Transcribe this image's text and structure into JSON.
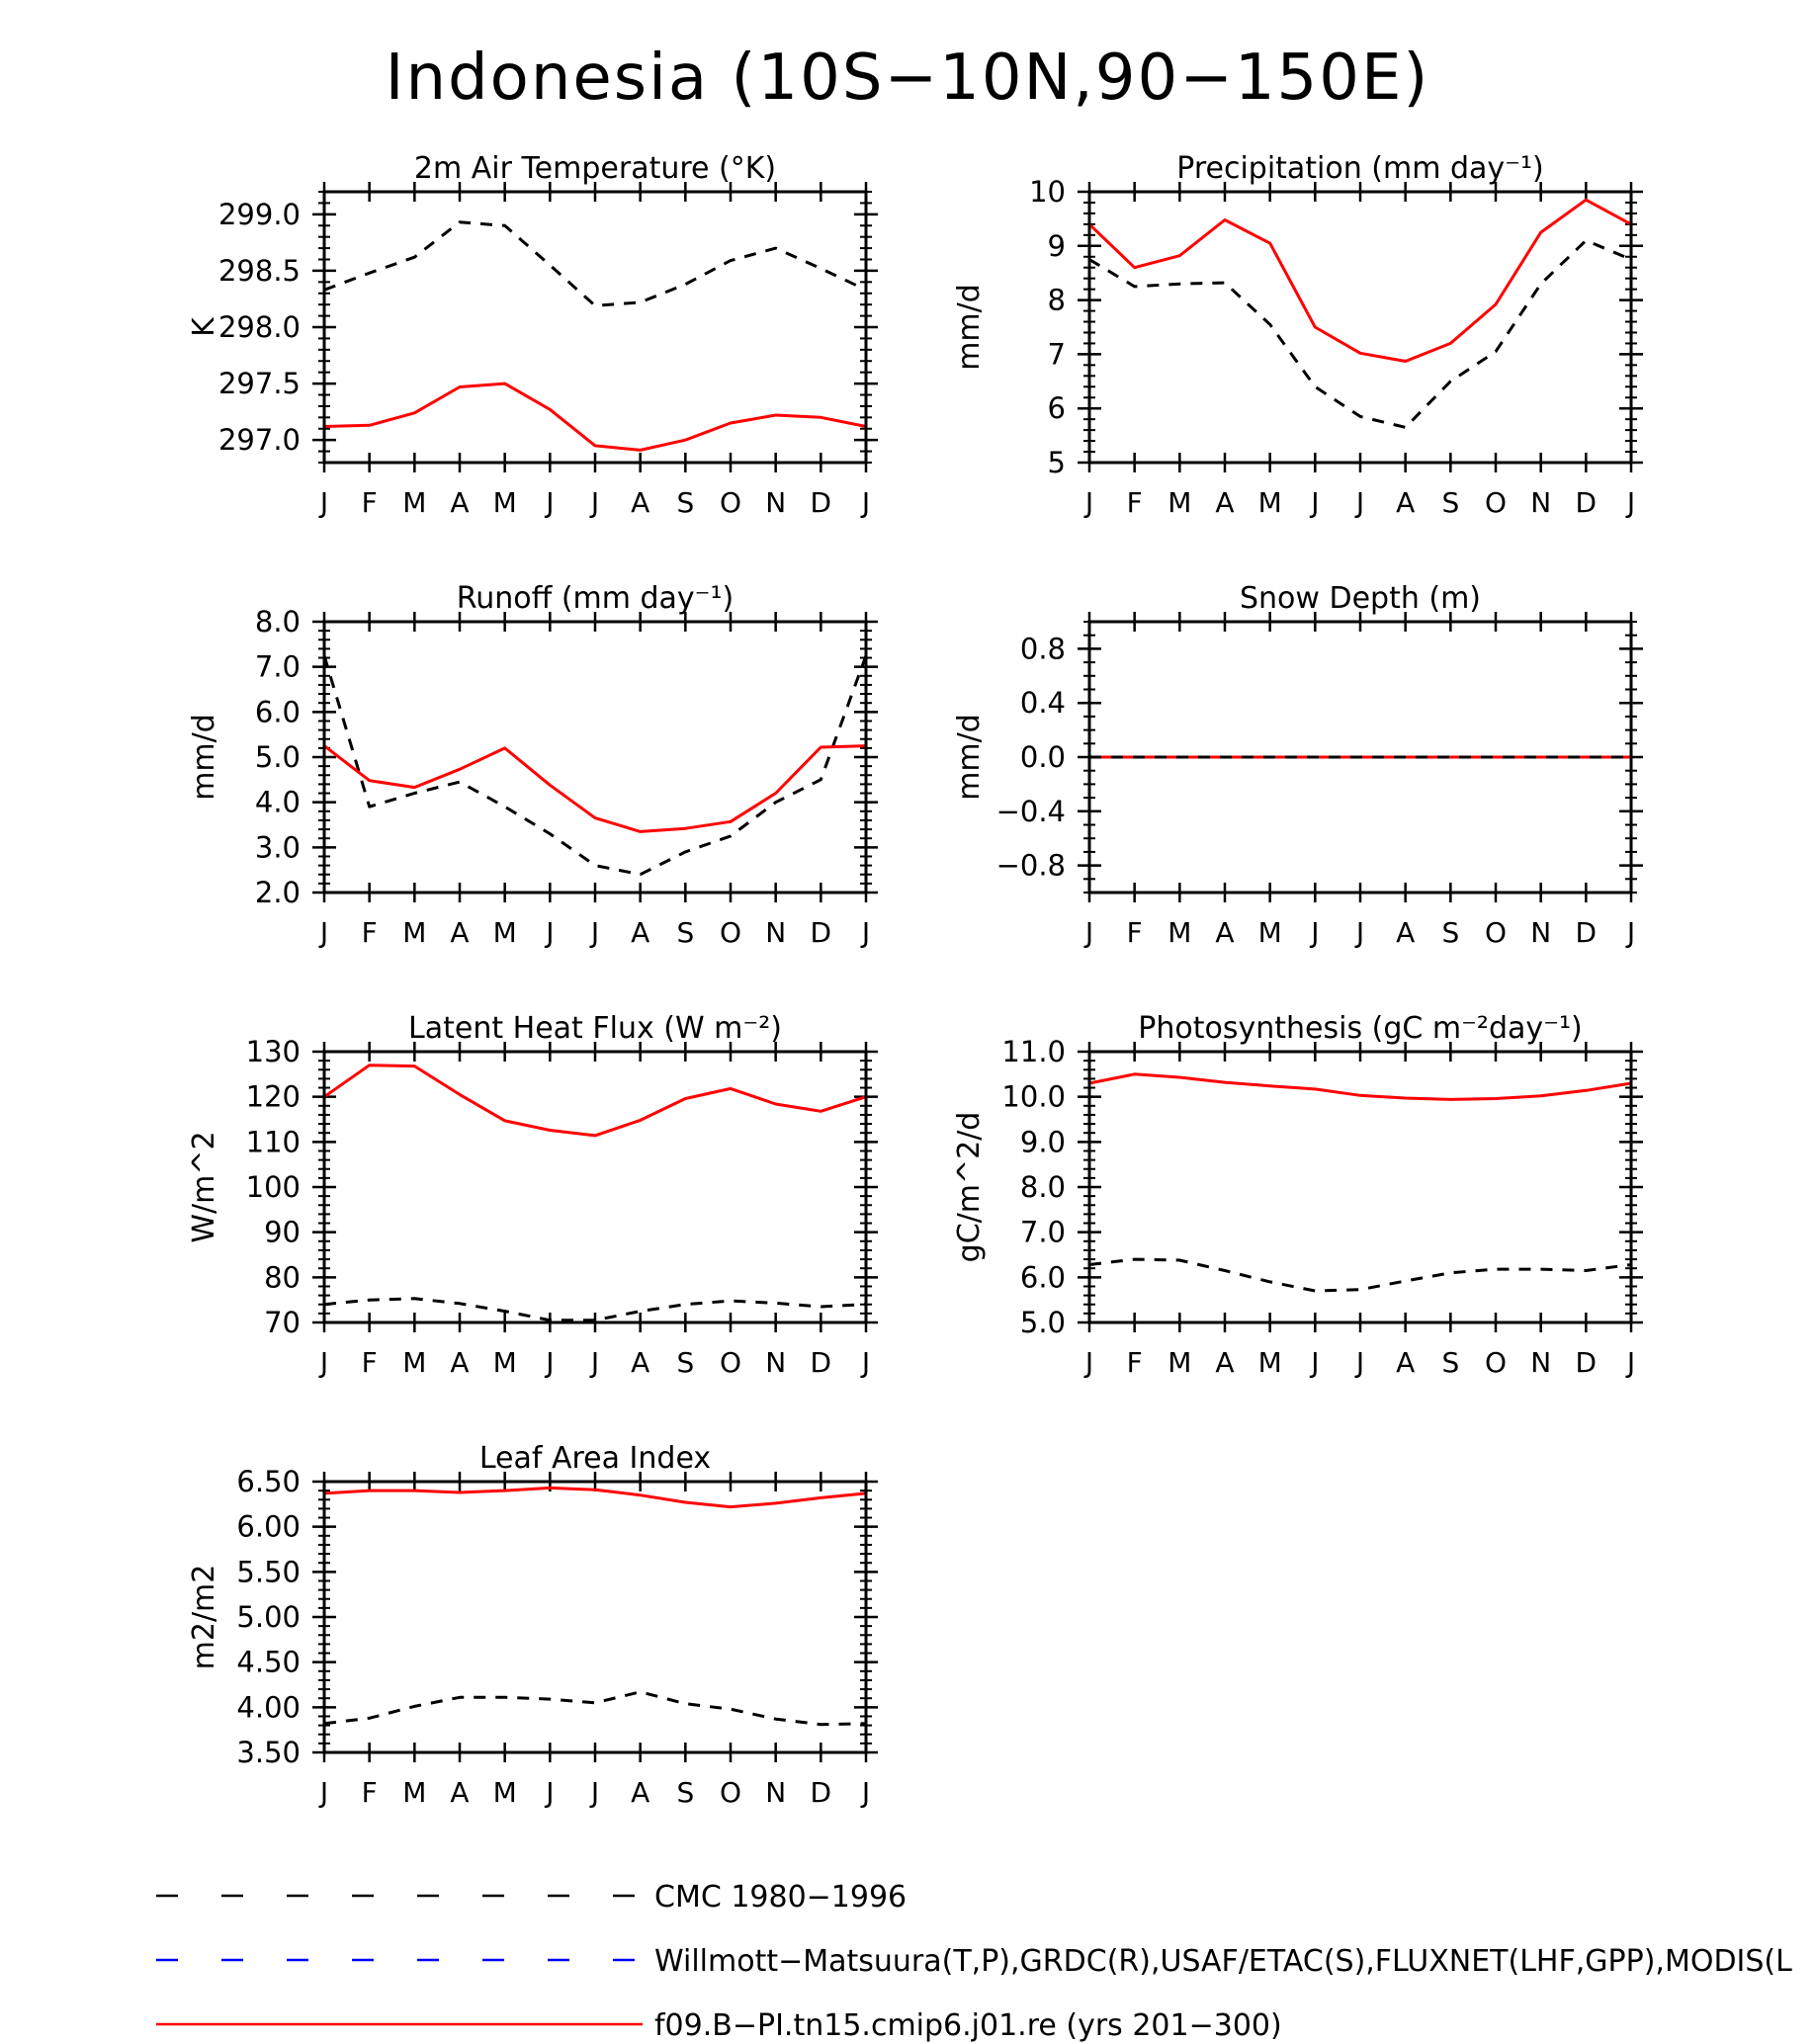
{
  "page_title": "Indonesia (10S−10N,90−150E)",
  "months": [
    "J",
    "F",
    "M",
    "A",
    "M",
    "J",
    "J",
    "A",
    "S",
    "O",
    "N",
    "D",
    "J"
  ],
  "colors": {
    "model": "#ff0000",
    "obs_cmc": "#000000",
    "obs_wm": "#0000ff"
  },
  "legend": {
    "cmc": "CMC 1980−1996",
    "wm": "Willmott−Matsuura(T,P),GRDC(R),USAF/ETAC(S),FLUXNET(LHF,GPP),MODIS(L",
    "model": "f09.B−PI.tn15.cmip6.j01.re (yrs 201−300)"
  },
  "chart_data": [
    {
      "type": "line",
      "title": "2m Air Temperature (°K)",
      "ylabel": "K",
      "ylim": [
        296.8,
        299.2
      ],
      "yticks": [
        297.0,
        297.5,
        298.0,
        298.5,
        299.0
      ],
      "ytick_labels": [
        "297.0",
        "297.5",
        "298.0",
        "298.5",
        "299.0"
      ],
      "minor_step": 0.1,
      "series": [
        {
          "name": "CMC 1980−1996",
          "style": "dashed",
          "values": [
            298.33,
            298.48,
            298.62,
            298.93,
            298.9,
            298.55,
            298.19,
            298.22,
            298.38,
            298.59,
            298.7,
            298.52,
            298.33
          ]
        },
        {
          "name": "f09.B−PI.tn15.cmip6.j01.re (yrs 201−300)",
          "style": "solid",
          "values": [
            297.12,
            297.13,
            297.24,
            297.47,
            297.5,
            297.27,
            296.95,
            296.91,
            297.0,
            297.15,
            297.22,
            297.2,
            297.12
          ]
        }
      ]
    },
    {
      "type": "line",
      "title": "Precipitation (mm day⁻¹)",
      "ylabel": "mm/d",
      "ylim": [
        5,
        10
      ],
      "yticks": [
        5,
        6,
        7,
        8,
        9,
        10
      ],
      "ytick_labels": [
        "5",
        "6",
        "7",
        "8",
        "9",
        "10"
      ],
      "minor_step": 0.2,
      "series": [
        {
          "name": "CMC 1980−1996",
          "style": "dashed",
          "values": [
            8.75,
            8.25,
            8.3,
            8.32,
            7.55,
            6.4,
            5.85,
            5.65,
            6.5,
            7.05,
            8.3,
            9.1,
            8.75
          ]
        },
        {
          "name": "f09.B−PI.tn15.cmip6.j01.re (yrs 201−300)",
          "style": "solid",
          "values": [
            9.4,
            8.6,
            8.82,
            9.48,
            9.05,
            7.5,
            7.02,
            6.87,
            7.2,
            7.92,
            9.25,
            9.85,
            9.4
          ]
        }
      ]
    },
    {
      "type": "line",
      "title": "Runoff (mm day⁻¹)",
      "ylabel": "mm/d",
      "ylim": [
        2.0,
        8.0
      ],
      "yticks": [
        2.0,
        3.0,
        4.0,
        5.0,
        6.0,
        7.0,
        8.0
      ],
      "ytick_labels": [
        "2.0",
        "3.0",
        "4.0",
        "5.0",
        "6.0",
        "7.0",
        "8.0"
      ],
      "minor_step": 0.2,
      "series": [
        {
          "name": "CMC 1980−1996",
          "style": "dashed",
          "values": [
            7.25,
            3.9,
            4.2,
            4.45,
            3.9,
            3.3,
            2.6,
            2.4,
            2.9,
            3.25,
            4.0,
            4.5,
            7.25
          ]
        },
        {
          "name": "f09.B−PI.tn15.cmip6.j01.re (yrs 201−300)",
          "style": "solid",
          "values": [
            5.25,
            4.48,
            4.33,
            4.73,
            5.2,
            4.38,
            3.65,
            3.35,
            3.42,
            3.57,
            4.2,
            5.22,
            5.25
          ]
        }
      ]
    },
    {
      "type": "line",
      "title": "Snow Depth (m)",
      "ylabel": "mm/d",
      "ylim": [
        -1.0,
        1.0
      ],
      "yticks": [
        -0.8,
        -0.4,
        0.0,
        0.4,
        0.8
      ],
      "ytick_labels": [
        "−0.8",
        "−0.4",
        "0.0",
        "0.4",
        "0.8"
      ],
      "minor_step": 0.1,
      "series": [
        {
          "name": "f09.B−PI.tn15.cmip6.j01.re (yrs 201−300)",
          "style": "solid",
          "values": [
            0,
            0,
            0,
            0,
            0,
            0,
            0,
            0,
            0,
            0,
            0,
            0,
            0
          ]
        },
        {
          "name": "CMC 1980−1996",
          "style": "dashed",
          "values": [
            0,
            0,
            0,
            0,
            0,
            0,
            0,
            0,
            0,
            0,
            0,
            0,
            0
          ]
        }
      ]
    },
    {
      "type": "line",
      "title": "Latent Heat Flux (W m⁻²)",
      "ylabel": "W/m^2",
      "ylim": [
        70,
        130
      ],
      "yticks": [
        70,
        80,
        90,
        100,
        110,
        120,
        130
      ],
      "ytick_labels": [
        "70",
        "80",
        "90",
        "100",
        "110",
        "120",
        "130"
      ],
      "minor_step": 2,
      "series": [
        {
          "name": "CMC 1980−1996",
          "style": "dashed",
          "values": [
            74.0,
            75.0,
            75.3,
            74.2,
            72.5,
            70.5,
            70.5,
            72.5,
            74.0,
            74.8,
            74.3,
            73.5,
            74.0
          ]
        },
        {
          "name": "f09.B−PI.tn15.cmip6.j01.re (yrs 201−300)",
          "style": "solid",
          "values": [
            120.0,
            127.0,
            126.8,
            120.5,
            114.7,
            112.6,
            111.4,
            114.8,
            119.6,
            121.8,
            118.4,
            116.8,
            120.0
          ]
        }
      ]
    },
    {
      "type": "line",
      "title": "Photosynthesis (gC m⁻²day⁻¹)",
      "ylabel": "gC/m^2/d",
      "ylim": [
        5.0,
        11.0
      ],
      "yticks": [
        5.0,
        6.0,
        7.0,
        8.0,
        9.0,
        10.0,
        11.0
      ],
      "ytick_labels": [
        "5.0",
        "6.0",
        "7.0",
        "8.0",
        "9.0",
        "10.0",
        "11.0"
      ],
      "minor_step": 0.2,
      "series": [
        {
          "name": "CMC 1980−1996",
          "style": "dashed",
          "values": [
            6.28,
            6.4,
            6.38,
            6.15,
            5.9,
            5.7,
            5.73,
            5.92,
            6.1,
            6.18,
            6.18,
            6.15,
            6.28
          ]
        },
        {
          "name": "f09.B−PI.tn15.cmip6.j01.re (yrs 201−300)",
          "style": "solid",
          "values": [
            10.3,
            10.5,
            10.43,
            10.32,
            10.24,
            10.17,
            10.03,
            9.97,
            9.94,
            9.96,
            10.02,
            10.14,
            10.3
          ]
        }
      ]
    },
    {
      "type": "line",
      "title": "Leaf Area Index",
      "ylabel": "m2/m2",
      "ylim": [
        3.5,
        6.5
      ],
      "yticks": [
        3.5,
        4.0,
        4.5,
        5.0,
        5.5,
        6.0,
        6.5
      ],
      "ytick_labels": [
        "3.50",
        "4.00",
        "4.50",
        "5.00",
        "5.50",
        "6.00",
        "6.50"
      ],
      "minor_step": 0.1,
      "series": [
        {
          "name": "CMC 1980−1996",
          "style": "dashed",
          "values": [
            3.82,
            3.88,
            4.01,
            4.11,
            4.11,
            4.09,
            4.05,
            4.17,
            4.04,
            3.98,
            3.87,
            3.81,
            3.82
          ]
        },
        {
          "name": "f09.B−PI.tn15.cmip6.j01.re (yrs 201−300)",
          "style": "solid",
          "values": [
            6.37,
            6.4,
            6.4,
            6.38,
            6.4,
            6.43,
            6.41,
            6.35,
            6.27,
            6.22,
            6.26,
            6.32,
            6.37
          ]
        }
      ]
    }
  ]
}
